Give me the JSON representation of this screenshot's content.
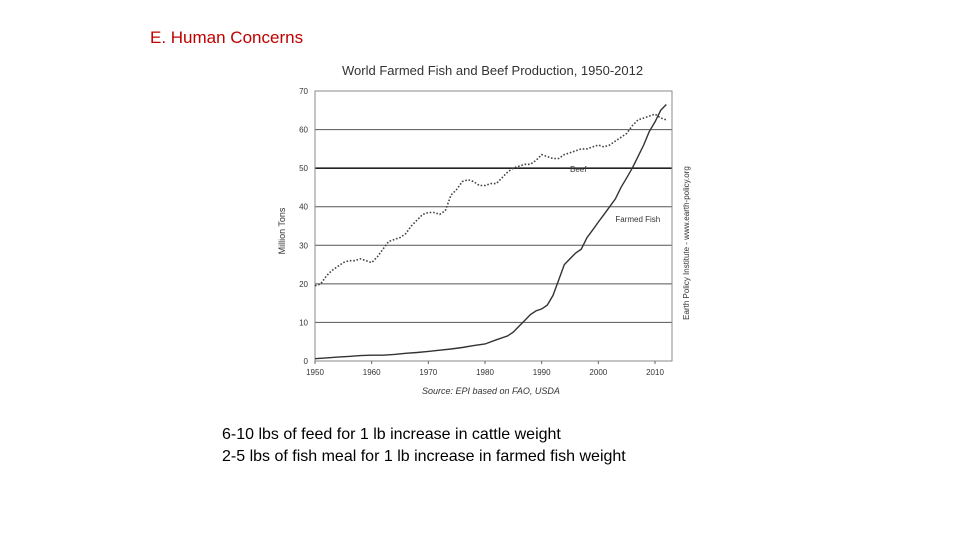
{
  "slide": {
    "title": "E. Human Concerns",
    "notes": [
      "6-10 lbs of feed for 1 lb increase in cattle weight",
      "2-5 lbs of fish meal for 1 lb increase in farmed fish weight"
    ]
  },
  "chart_data": {
    "type": "line",
    "title": "World Farmed Fish and Beef Production, 1950-2012",
    "xlabel": "",
    "ylabel": "Million Tons",
    "xlim": [
      1950,
      2013
    ],
    "ylim": [
      0,
      70
    ],
    "xticks": [
      1950,
      1960,
      1970,
      1980,
      1990,
      2000,
      2010
    ],
    "yticks": [
      0,
      10,
      20,
      30,
      40,
      50,
      60,
      70
    ],
    "grid": true,
    "source": "Source: EPI based on FAO, USDA",
    "side_credit": "Earth Policy Institute - www.earth-policy.org",
    "series": [
      {
        "name": "Beef",
        "style": "dotted",
        "color": "#444444",
        "x": [
          1950,
          1951,
          1952,
          1953,
          1954,
          1955,
          1956,
          1957,
          1958,
          1959,
          1960,
          1961,
          1962,
          1963,
          1964,
          1965,
          1966,
          1967,
          1968,
          1969,
          1970,
          1971,
          1972,
          1973,
          1974,
          1975,
          1976,
          1977,
          1978,
          1979,
          1980,
          1981,
          1982,
          1983,
          1984,
          1985,
          1986,
          1987,
          1988,
          1989,
          1990,
          1991,
          1992,
          1993,
          1994,
          1995,
          1996,
          1997,
          1998,
          1999,
          2000,
          2001,
          2002,
          2003,
          2004,
          2005,
          2006,
          2007,
          2008,
          2009,
          2010,
          2011,
          2012
        ],
        "values": [
          19.5,
          20,
          22,
          23.5,
          24.5,
          25.5,
          26,
          26,
          26.5,
          26,
          25.5,
          27,
          29,
          31,
          31.5,
          32,
          33,
          35,
          36.5,
          38,
          38.5,
          38.5,
          38,
          39,
          43,
          44.5,
          46.5,
          47,
          46.5,
          45.5,
          45.5,
          46,
          46,
          47.5,
          49,
          50,
          50.5,
          51,
          51,
          52,
          53.5,
          53,
          52.5,
          52.5,
          53.5,
          54,
          54.5,
          55,
          55,
          55.5,
          56,
          55.5,
          56,
          57,
          58,
          59,
          61,
          62.5,
          63,
          63.5,
          64,
          63,
          62.5
        ]
      },
      {
        "name": "Farmed Fish",
        "style": "solid",
        "color": "#333333",
        "x": [
          1950,
          1952,
          1954,
          1956,
          1958,
          1960,
          1962,
          1964,
          1966,
          1968,
          1970,
          1972,
          1974,
          1976,
          1978,
          1980,
          1982,
          1984,
          1985,
          1986,
          1987,
          1988,
          1989,
          1990,
          1991,
          1992,
          1993,
          1994,
          1995,
          1996,
          1997,
          1998,
          1999,
          2000,
          2001,
          2002,
          2003,
          2004,
          2005,
          2006,
          2007,
          2008,
          2009,
          2010,
          2011,
          2012
        ],
        "values": [
          0.6,
          0.8,
          1,
          1.2,
          1.4,
          1.5,
          1.5,
          1.7,
          2,
          2.2,
          2.5,
          2.8,
          3.1,
          3.5,
          4,
          4.4,
          5.5,
          6.5,
          7.5,
          9,
          10.5,
          12,
          13,
          13.5,
          14.5,
          17,
          21,
          25,
          26.5,
          28,
          29,
          32,
          34,
          36,
          38,
          40,
          42,
          45,
          47.5,
          50,
          53,
          56,
          59.5,
          62,
          65,
          66.5
        ]
      }
    ],
    "annotations": [
      {
        "text": "Beef",
        "x": 1995,
        "y": 49
      },
      {
        "text": "Farmed Fish",
        "x": 2003,
        "y": 36
      }
    ]
  }
}
